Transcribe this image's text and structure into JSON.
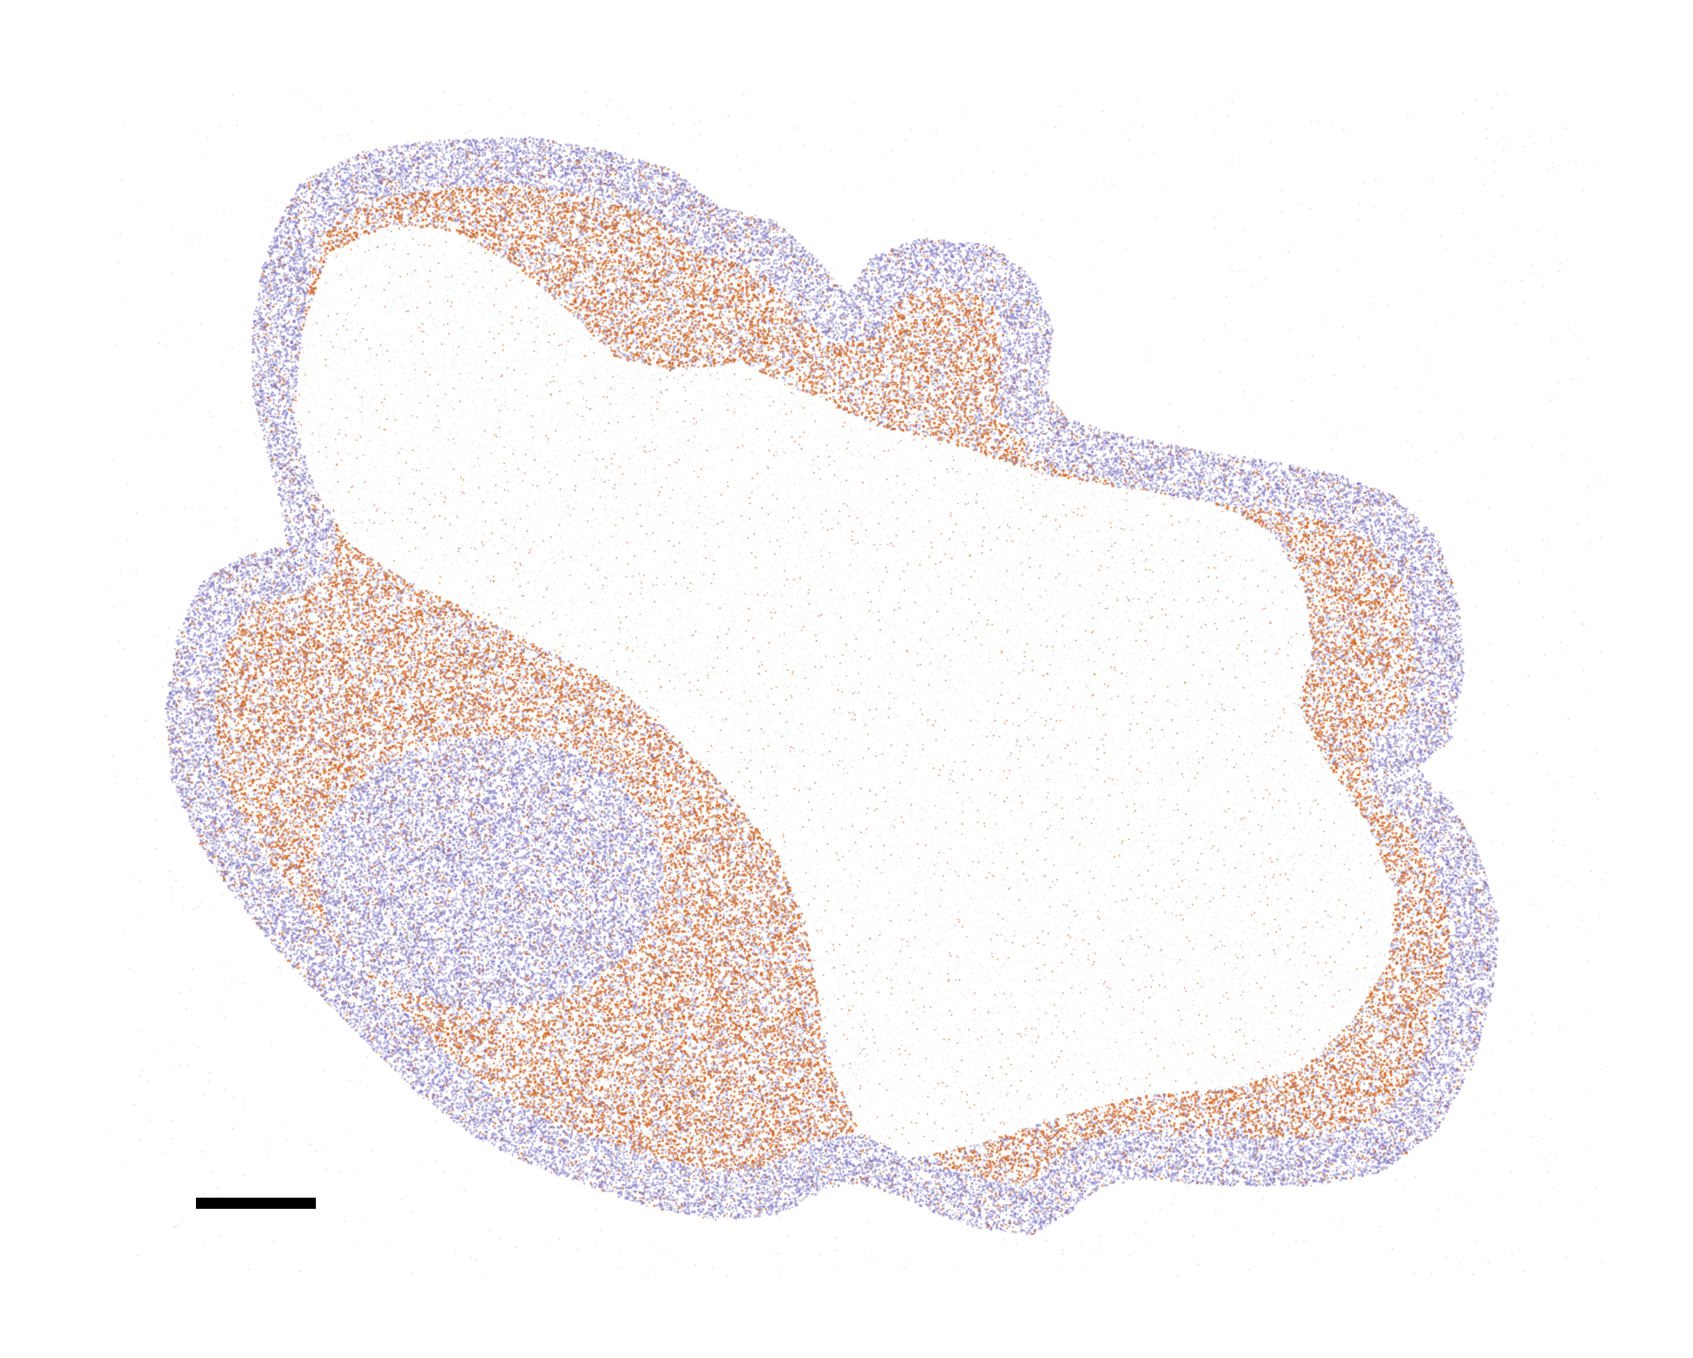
{
  "figure": {
    "kind": "spatial-transcriptomics-cell-map",
    "background_color": "#ffffff",
    "point_classes": [
      {
        "key": "class_a",
        "color": "#7b72c0",
        "description_visible": false
      },
      {
        "key": "class_b",
        "color": "#d2641e",
        "description_visible": false
      },
      {
        "key": "unassigned",
        "color": "#d9d9d9",
        "description_visible": false
      }
    ],
    "scale_bar": {
      "color": "#000000",
      "label": ""
    }
  }
}
